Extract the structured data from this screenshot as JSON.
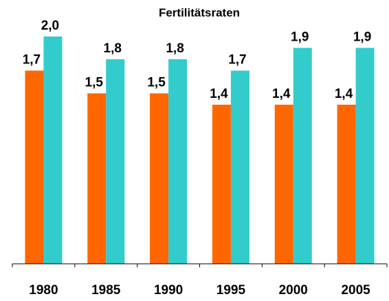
{
  "chart_data": {
    "type": "bar",
    "title": "Fertilitätsraten",
    "categories": [
      "1980",
      "1985",
      "1990",
      "1995",
      "2000",
      "2005"
    ],
    "series": [
      {
        "color": "#ff6600",
        "values": [
          1.7,
          1.5,
          1.5,
          1.4,
          1.4,
          1.4
        ],
        "value_labels": [
          "1,7",
          "1,5",
          "1,5",
          "1,4",
          "1,4",
          "1,4"
        ]
      },
      {
        "color": "#33cccc",
        "values": [
          2.0,
          1.8,
          1.8,
          1.7,
          1.9,
          1.9
        ],
        "value_labels": [
          "2,0",
          "1,8",
          "1,8",
          "1,7",
          "1,9",
          "1,9"
        ]
      }
    ],
    "ylim": [
      0,
      2.2
    ]
  }
}
